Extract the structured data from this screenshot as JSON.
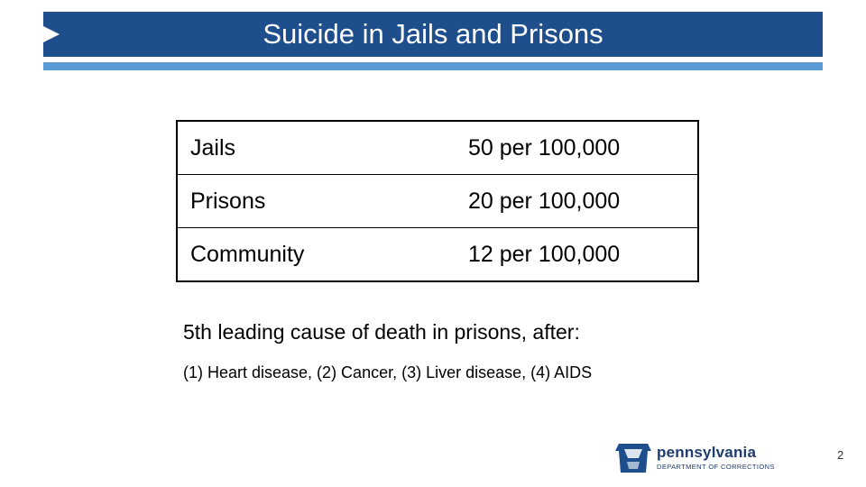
{
  "slide": {
    "title": "Suicide in Jails and Prisons",
    "rates": [
      {
        "label": "Jails",
        "value": "50 per 100,000"
      },
      {
        "label": "Prisons",
        "value": "20 per 100,000"
      },
      {
        "label": "Community",
        "value": "12 per 100,000"
      }
    ],
    "note_main": "5th leading cause of death in prisons, after:",
    "note_sub": "(1) Heart disease, (2) Cancer, (3) Liver disease, (4) AIDS",
    "page_number": "2"
  },
  "logo": {
    "name": "pennsylvania",
    "department": "DEPARTMENT OF CORRECTIONS",
    "icon": "keystone-icon"
  },
  "colors": {
    "title_bar": "#1f4e8c",
    "title_stripe": "#5b9bd5",
    "logo_blue": "#1f3c6e"
  }
}
